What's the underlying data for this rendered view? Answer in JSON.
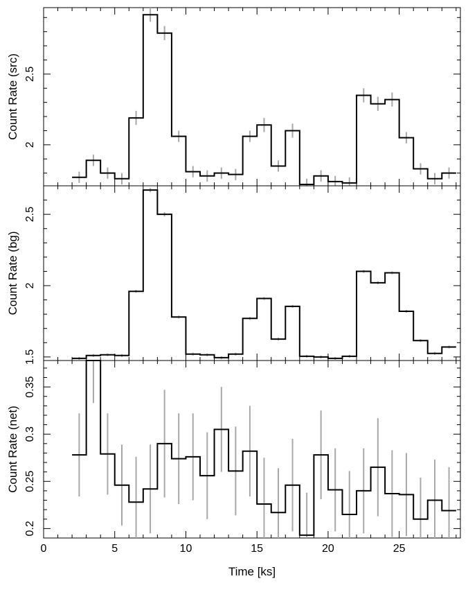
{
  "chart_data": [
    {
      "type": "line",
      "panel": "src",
      "ylabel": "Count Rate (src)",
      "xlim": [
        0,
        29.3
      ],
      "ylim": [
        1.71,
        2.97
      ],
      "yticks": [
        2,
        2.5
      ],
      "x": [
        2.5,
        3.5,
        4.5,
        5.5,
        6.5,
        7.5,
        8.5,
        9.5,
        10.5,
        11.5,
        12.5,
        13.5,
        14.5,
        15.5,
        16.5,
        17.5,
        18.5,
        19.5,
        20.5,
        21.5,
        22.5,
        23.5,
        24.5,
        25.5,
        26.5,
        27.5,
        28.5
      ],
      "values": [
        1.77,
        1.89,
        1.8,
        1.76,
        2.19,
        2.92,
        2.79,
        2.06,
        1.81,
        1.78,
        1.8,
        1.79,
        2.06,
        2.14,
        1.85,
        2.1,
        1.72,
        1.78,
        1.74,
        1.73,
        2.35,
        2.29,
        2.32,
        2.05,
        1.83,
        1.76,
        1.8
      ],
      "errors": [
        0.04,
        0.04,
        0.04,
        0.04,
        0.05,
        0.05,
        0.05,
        0.04,
        0.04,
        0.04,
        0.04,
        0.04,
        0.04,
        0.05,
        0.04,
        0.05,
        0.04,
        0.04,
        0.04,
        0.04,
        0.05,
        0.05,
        0.05,
        0.04,
        0.04,
        0.04,
        0.04
      ]
    },
    {
      "type": "line",
      "panel": "bg",
      "ylabel": "Count Rate (bg)",
      "xlim": [
        0,
        29.3
      ],
      "ylim": [
        1.475,
        2.7
      ],
      "yticks": [
        1.5,
        2,
        2.5
      ],
      "x": [
        2.5,
        3.5,
        4.5,
        5.5,
        6.5,
        7.5,
        8.5,
        9.5,
        10.5,
        11.5,
        12.5,
        13.5,
        14.5,
        15.5,
        16.5,
        17.5,
        18.5,
        19.5,
        20.5,
        21.5,
        22.5,
        23.5,
        24.5,
        25.5,
        26.5,
        27.5,
        28.5
      ],
      "values": [
        1.49,
        1.51,
        1.515,
        1.51,
        1.96,
        2.67,
        2.5,
        1.78,
        1.52,
        1.515,
        1.495,
        1.52,
        1.77,
        1.91,
        1.625,
        1.855,
        1.505,
        1.5,
        1.49,
        1.505,
        2.1,
        2.02,
        2.09,
        1.82,
        1.615,
        1.525,
        1.57
      ],
      "errors": [
        0.01,
        0.01,
        0.01,
        0.01,
        0.01,
        0.015,
        0.015,
        0.01,
        0.01,
        0.01,
        0.01,
        0.01,
        0.01,
        0.01,
        0.01,
        0.01,
        0.01,
        0.01,
        0.01,
        0.01,
        0.01,
        0.01,
        0.01,
        0.01,
        0.01,
        0.01,
        0.01
      ]
    },
    {
      "type": "line",
      "panel": "net",
      "ylabel": "Count Rate (net)",
      "xlabel": "Time [ks]",
      "xlim": [
        0,
        29.3
      ],
      "ylim": [
        0.19,
        0.378
      ],
      "yticks": [
        0.2,
        0.25,
        0.3,
        0.35
      ],
      "xticks": [
        0,
        5,
        10,
        15,
        20,
        25
      ],
      "x": [
        2.5,
        3.5,
        4.5,
        5.5,
        6.5,
        7.5,
        8.5,
        9.5,
        10.5,
        11.5,
        12.5,
        13.5,
        14.5,
        15.5,
        16.5,
        17.5,
        18.5,
        19.5,
        20.5,
        21.5,
        22.5,
        23.5,
        24.5,
        25.5,
        26.5,
        27.5,
        28.5
      ],
      "values": [
        0.278,
        0.378,
        0.279,
        0.246,
        0.228,
        0.242,
        0.29,
        0.274,
        0.276,
        0.256,
        0.305,
        0.261,
        0.282,
        0.226,
        0.217,
        0.246,
        0.193,
        0.278,
        0.241,
        0.215,
        0.24,
        0.265,
        0.237,
        0.236,
        0.21,
        0.23,
        0.219
      ],
      "errors": [
        0.044,
        0.045,
        0.043,
        0.043,
        0.048,
        0.047,
        0.057,
        0.048,
        0.046,
        0.046,
        0.045,
        0.047,
        0.048,
        0.049,
        0.047,
        0.049,
        0.045,
        0.047,
        0.044,
        0.046,
        0.045,
        0.052,
        0.046,
        0.044,
        0.044,
        0.043,
        0.046
      ]
    }
  ],
  "style": {
    "step_color": "#000000",
    "error_color": "#a8a8a8",
    "axis_color": "#000000",
    "background": "#ffffff"
  }
}
